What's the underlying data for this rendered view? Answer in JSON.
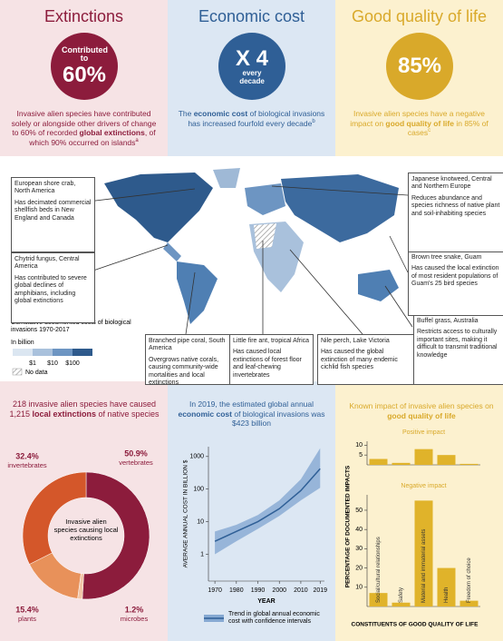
{
  "top_panels": [
    {
      "title": "Extinctions",
      "badge": [
        "Contributed to",
        "60%"
      ],
      "text": [
        "Invasive alien species have contributed solely or alongside other drivers of change to 60% of recorded ",
        "global extinctions",
        ", of which 90% occurred on islands"
      ],
      "note": "a"
    },
    {
      "title": "Economic cost",
      "badge": [
        "X 4",
        "every decade"
      ],
      "text": [
        "The ",
        "economic cost",
        " of biological invasions has increased fourfold every decade"
      ],
      "note": "b"
    },
    {
      "title": "Good quality of life",
      "badge": [
        "85%"
      ],
      "text": [
        "Invasive alien species have a negative impact on ",
        "good quality of life",
        " in 85% of cases"
      ],
      "note": "c"
    }
  ],
  "map": {
    "callouts": [
      {
        "title": "European shore crab, North America",
        "text": "Has decimated commercial shellfish beds in New England and Canada"
      },
      {
        "title": "Chytrid fungus, Central America",
        "text": "Has contributed to severe global declines of amphibians, including global extinctions"
      },
      {
        "title": "Branched pipe coral, South America",
        "text": "Overgrows native corals, causing community-wide mortalities and local extinctions"
      },
      {
        "title": "Little fire ant, tropical Africa",
        "text": "Has caused local extinctions of forest floor and leaf-chewing invertebrates"
      },
      {
        "title": "Nile perch, Lake Victoria",
        "text": "Has caused the global extinction of many endemic cichlid fish species"
      },
      {
        "title": "Buffel grass, Australia",
        "text": "Restricts access to culturally important sites, making it difficult to transmit traditional knowledge"
      },
      {
        "title": "Brown tree snake, Guam",
        "text": "Has caused the local extinction of most resident populations of Guam's 25 bird species"
      },
      {
        "title": "Japanese knotweed, Central and Northern Europe",
        "text": "Reduces abundance and species richness of native plant and soil-inhabiting species"
      }
    ],
    "legend": {
      "title": "Cumulative documented costs of biological invasions 1970-2017",
      "unit": "In billion",
      "ticks": [
        "$1",
        "$10",
        "$100"
      ],
      "no_data": "No data"
    }
  },
  "chart_data": [
    {
      "type": "pie",
      "title": [
        "218 invasive alien species have caused 1,215 ",
        "local extinctions",
        " of native species"
      ],
      "center_label": "Invasive alien species causing local extinctions",
      "categories": [
        "vertebrates",
        "microbes",
        "plants",
        "invertebrates"
      ],
      "values": [
        50.9,
        1.2,
        15.4,
        32.4
      ],
      "value_labels": [
        "50.9%",
        "1.2%",
        "15.4%",
        "32.4%"
      ],
      "colors": [
        "#8c1c3c",
        "#f2c6a8",
        "#e8915a",
        "#d4572a"
      ],
      "donut": true
    },
    {
      "type": "line",
      "title": [
        "In 2019, the estimated global annual ",
        "economic cost",
        " of biological invasions was $423 billion"
      ],
      "ylabel": "AVERAGE ANNUAL COST IN BILLION $",
      "xlabel": "YEAR",
      "x": [
        1970,
        1980,
        1990,
        2000,
        2010,
        2019
      ],
      "series": [
        {
          "name": "Trend in global annual economic cost with confidence intervals",
          "color": "#2f5f96",
          "values": [
            2.5,
            5,
            10,
            25,
            90,
            423
          ]
        }
      ],
      "band_lower": [
        1,
        2.5,
        6,
        15,
        45,
        110
      ],
      "band_upper": [
        5,
        8,
        16,
        45,
        200,
        1800
      ],
      "band_color": "#86a9d2",
      "log_scale": "y",
      "xlim": [
        1967,
        2021
      ],
      "xticks": [
        1970,
        1980,
        1990,
        2000,
        2010,
        2019
      ],
      "ylim": [
        0.15,
        2000
      ],
      "yticks": [
        1,
        10,
        100,
        1000
      ]
    },
    {
      "type": "bar",
      "panel_title": [
        "Known impact of invasive alien species on ",
        "good quality of life"
      ],
      "title": "Positive impact",
      "values": [
        3,
        1,
        8,
        5,
        0.5
      ],
      "color": "#e0b32a",
      "ylim": [
        0,
        12
      ],
      "yticks": [
        5,
        10
      ]
    },
    {
      "type": "bar",
      "title": "Negative impact",
      "ylabel": "PERCENTAGE OF DOCUMENTED IMPACTS",
      "xlabel": "CONSTITUENTS OF GOOD QUALITY OF LIFE",
      "categories": [
        "Social/cultural relationships",
        "Safety",
        "Material and immaterial assets",
        "Health",
        "Freedom of choice"
      ],
      "values": [
        7,
        2,
        55,
        20,
        3
      ],
      "color": "#e0b32a",
      "ylim": [
        0,
        58
      ],
      "yticks": [
        10,
        20,
        30,
        40,
        50
      ]
    }
  ]
}
